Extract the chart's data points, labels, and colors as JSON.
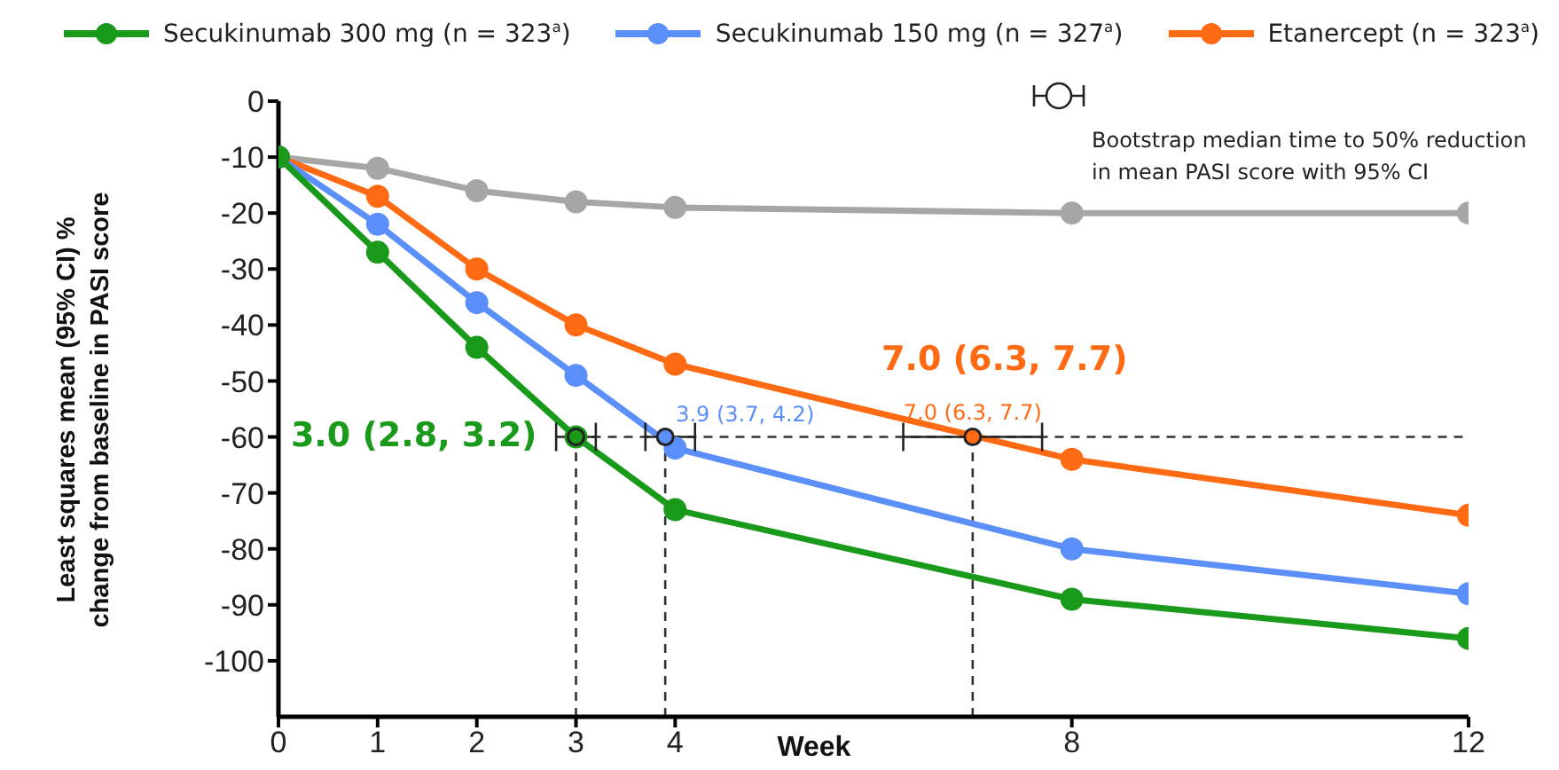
{
  "chart_data": {
    "type": "line",
    "ylabel": "Least squares mean (95% CI) %\nchange from baseline in PASI score",
    "xlabel": "Week",
    "x": [
      0,
      1,
      2,
      3,
      4,
      8,
      12
    ],
    "xlim": [
      0,
      12
    ],
    "xticks": [
      0,
      1,
      2,
      3,
      4,
      8,
      12
    ],
    "ylim": [
      -110,
      0
    ],
    "yticks": [
      0,
      -10,
      -20,
      -30,
      -40,
      -50,
      -60,
      -70,
      -80,
      -90,
      -100
    ],
    "marker": "circle",
    "line_style": "solid",
    "legend": "top",
    "series": [
      {
        "name": "Secukinumab 300 mg (n = 323$^{a}$)",
        "color": "#1a9a1a",
        "values": [
          -10,
          -27,
          -44,
          -60,
          -73,
          -89,
          -96
        ]
      },
      {
        "name": "Secukinumab 150 mg (n = 327$^{a}$)",
        "color": "#5b8ff9",
        "values": [
          -10,
          -22,
          -36,
          -49,
          -62,
          -80,
          -88
        ]
      },
      {
        "name": "Etanercept (n = 323$^{a}$)",
        "color": "#ff6a13",
        "values": [
          -10,
          -17,
          -30,
          -40,
          -47,
          -64,
          -74
        ]
      },
      {
        "color": "#a6a6a6",
        "values": [
          -10,
          -12,
          -16,
          -18,
          -19,
          -20,
          -20
        ]
      },
      {
        "type": "scatter",
        "color": "#1a9a1a",
        "x": [
          3.0
        ],
        "values": [
          -60
        ],
        "xerrors": [
          [
            2.8,
            3.2
          ]
        ]
      },
      {
        "type": "scatter",
        "color": "#5b8ff9",
        "x": [
          3.9
        ],
        "values": [
          -60
        ],
        "xerrors": [
          [
            3.7,
            4.2
          ]
        ]
      },
      {
        "type": "scatter",
        "color": "#ff6a13",
        "x": [
          7.0
        ],
        "values": [
          -60
        ],
        "xerrors": [
          [
            6.3,
            7.7
          ]
        ]
      }
    ],
    "ref_lines": [
      {
        "axis": "y",
        "value": -60,
        "color": "#333333",
        "line_style": "dashed"
      },
      {
        "axis": "x",
        "value": 3,
        "color": "#333333",
        "line_style": "dashed"
      },
      {
        "axis": "x",
        "value": 3.9,
        "color": "#333333",
        "line_style": "dashed"
      },
      {
        "axis": "x",
        "value": 7,
        "color": "#333333",
        "line_style": "dashed"
      }
    ],
    "annotations": [
      {
        "text": "3.0 (2.8, 3.2)",
        "x": 3.0,
        "y": -60
      },
      {
        "text": "3.9 (3.7, 4.2)",
        "x": 3.9,
        "y": -60
      },
      {
        "text": "7.0 (6.3, 7.7)",
        "x": 7.0,
        "y": -60
      },
      {
        "text": "7.0 (6.3, 7.7)",
        "x": 7.0,
        "y": -60
      },
      "Bootstrap median time to 50% reduction\nin mean PASI score with 95% CI"
    ]
  }
}
